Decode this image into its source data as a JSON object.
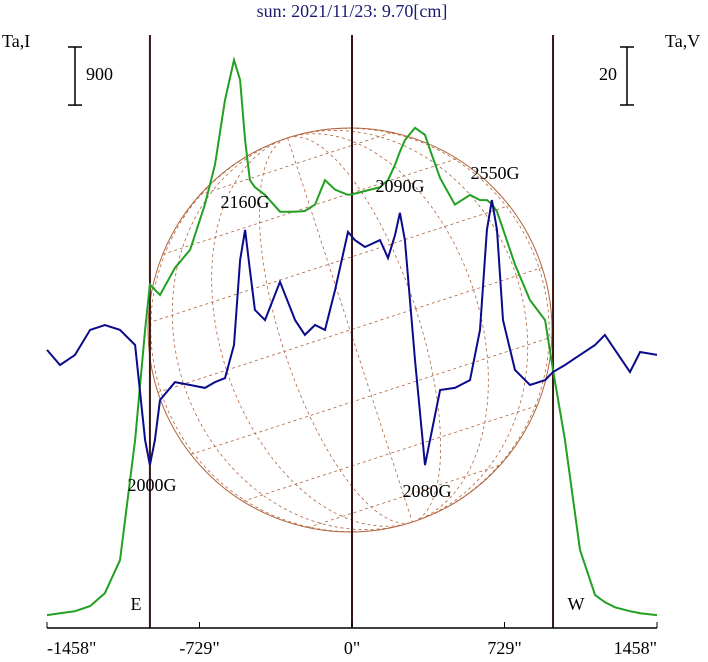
{
  "chart_data": {
    "type": "line",
    "title": "sun: 2021/11/23: 9.70[cm]",
    "x": [
      -1458,
      -1396,
      -1324,
      -1252,
      -1181,
      -1109,
      -1037,
      -989,
      -966,
      -942,
      -918,
      -846,
      -774,
      -703,
      -655,
      -607,
      -564,
      -535,
      -511,
      -488,
      -464,
      -416,
      -344,
      -272,
      -225,
      -177,
      -129,
      -81,
      -19,
      14,
      62,
      134,
      172,
      206,
      229,
      253,
      301,
      349,
      373,
      421,
      492,
      564,
      612,
      645,
      669,
      693,
      722,
      779,
      851,
      923,
      961,
      1018,
      1090,
      1162,
      1209,
      1257,
      1329,
      1377,
      1458
    ],
    "series": [
      {
        "name": "Ta,I",
        "color": "#22a022",
        "values": [
          0,
          30,
          60,
          140,
          340,
          850,
          2710,
          4420,
          5120,
          5040,
          4960,
          5380,
          5660,
          6360,
          6980,
          7980,
          8600,
          8290,
          7360,
          6740,
          6630,
          6510,
          6250,
          6250,
          6260,
          6360,
          6740,
          6590,
          6510,
          6530,
          6570,
          6630,
          6740,
          6980,
          7180,
          7360,
          7550,
          7440,
          7210,
          6770,
          6360,
          6510,
          6430,
          6430,
          6370,
          6250,
          5980,
          5430,
          4880,
          4570,
          3800,
          2710,
          1010,
          310,
          200,
          120,
          60,
          30,
          0
        ]
      },
      {
        "name": "Ta,V",
        "color": "#0a0a8c",
        "axis": "y2",
        "values": [
          0.7,
          -4.5,
          -1.0,
          7.6,
          9.3,
          7.6,
          2.4,
          -30.4,
          -39.0,
          -30.4,
          -16.6,
          -10.4,
          -11.4,
          -12.4,
          -10.4,
          -9.0,
          2.4,
          31.7,
          42.1,
          28.3,
          14.5,
          11.0,
          24.2,
          11.0,
          5.9,
          9.3,
          7.6,
          21.4,
          41.4,
          38.6,
          36.2,
          38.6,
          32.4,
          40.4,
          48.0,
          38.6,
          -2.8,
          -39.0,
          -30.4,
          -13.1,
          -12.4,
          -9.7,
          7.6,
          42.1,
          52.4,
          42.1,
          11.0,
          -6.2,
          -11.4,
          -9.7,
          -6.9,
          -4.5,
          -1.0,
          2.4,
          5.9,
          0.7,
          -6.9,
          0.0,
          -1.0
        ]
      }
    ],
    "xlim": [
      -1458,
      1458
    ],
    "xticks": [
      {
        "value": -1458,
        "label": "-1458\""
      },
      {
        "value": -729,
        "label": "-729\""
      },
      {
        "value": 0,
        "label": "0\""
      },
      {
        "value": 729,
        "label": "729\""
      },
      {
        "value": 1458,
        "label": "1458\""
      }
    ],
    "ylim": [
      -200,
      9220
    ],
    "y2lim": [
      -95.2,
      114.5
    ],
    "scale_bar_y": 900,
    "scale_bar_y2": 20,
    "vlines": [
      -966,
      0,
      961
    ],
    "limb_labels": [
      "E",
      "W"
    ],
    "annotations": [
      "2160G",
      "2090G",
      "2550G",
      "2000G",
      "2080G"
    ]
  }
}
